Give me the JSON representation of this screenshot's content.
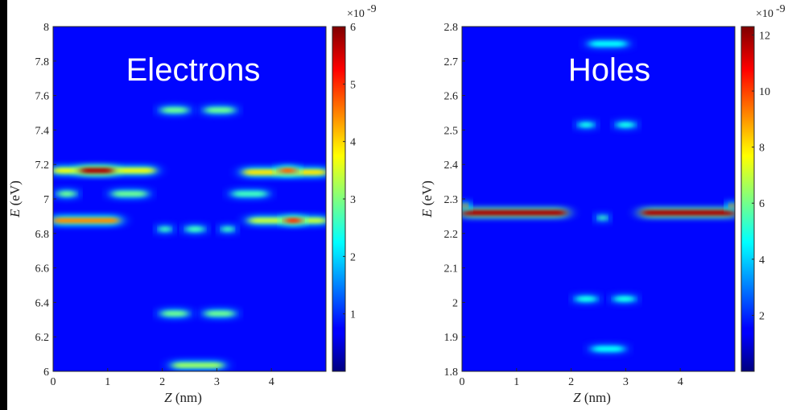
{
  "chart_data": [
    {
      "type": "heatmap",
      "title": "Electrons",
      "xlabel_var": "Z",
      "xlabel_unit": " (nm)",
      "ylabel_var": "E",
      "ylabel_unit": " (eV)",
      "xlim": [
        0,
        5
      ],
      "ylim": [
        6,
        8
      ],
      "x_ticks": [
        0,
        1,
        2,
        3,
        4
      ],
      "y_ticks": [
        6,
        6.2,
        6.4,
        6.6,
        6.8,
        7,
        7.2,
        7.4,
        7.6,
        7.8,
        8
      ],
      "x_tick_labels": [
        "0",
        "1",
        "2",
        "3",
        "4"
      ],
      "y_tick_labels": [
        "6",
        "6.2",
        "6.4",
        "6.6",
        "6.8",
        "7",
        "7.2",
        "7.4",
        "7.6",
        "7.8",
        "8"
      ],
      "colorbar": {
        "min": 0,
        "max": 6,
        "ticks": [
          1,
          2,
          3,
          4,
          5,
          6
        ],
        "tick_labels": [
          "1",
          "2",
          "3",
          "4",
          "5",
          "6"
        ],
        "multiplier": "×10",
        "exponent": "-9"
      },
      "features": [
        {
          "z": [
            0,
            1.85
          ],
          "e": 7.165,
          "intensity": 0.55
        },
        {
          "z": [
            0.5,
            1.1
          ],
          "e": 7.165,
          "intensity": 0.95
        },
        {
          "z": [
            0,
            1.2
          ],
          "e": 6.875,
          "intensity": 0.7
        },
        {
          "z": [
            0.1,
            0.4
          ],
          "e": 7.03,
          "intensity": 0.4
        },
        {
          "z": [
            1.1,
            1.7
          ],
          "e": 7.03,
          "intensity": 0.4
        },
        {
          "z": [
            3.3,
            3.9
          ],
          "e": 7.03,
          "intensity": 0.35
        },
        {
          "z": [
            3.5,
            5
          ],
          "e": 7.155,
          "intensity": 0.6
        },
        {
          "z": [
            4.15,
            4.45
          ],
          "e": 7.165,
          "intensity": 0.75
        },
        {
          "z": [
            3.6,
            5
          ],
          "e": 6.875,
          "intensity": 0.5
        },
        {
          "z": [
            4.25,
            4.55
          ],
          "e": 6.875,
          "intensity": 0.8
        },
        {
          "z": [
            2.0,
            2.45
          ],
          "e": 7.515,
          "intensity": 0.4
        },
        {
          "z": [
            2.8,
            3.3
          ],
          "e": 7.515,
          "intensity": 0.4
        },
        {
          "z": [
            1.95,
            2.15
          ],
          "e": 6.825,
          "intensity": 0.35
        },
        {
          "z": [
            2.45,
            2.75
          ],
          "e": 6.825,
          "intensity": 0.35
        },
        {
          "z": [
            3.1,
            3.3
          ],
          "e": 6.825,
          "intensity": 0.35
        },
        {
          "z": [
            2.0,
            2.45
          ],
          "e": 6.335,
          "intensity": 0.4
        },
        {
          "z": [
            2.8,
            3.3
          ],
          "e": 6.335,
          "intensity": 0.4
        },
        {
          "z": [
            2.2,
            3.1
          ],
          "e": 6.035,
          "intensity": 0.45
        }
      ]
    },
    {
      "type": "heatmap",
      "title": "Holes",
      "xlabel_var": "Z",
      "xlabel_unit": " (nm)",
      "ylabel_var": "E",
      "ylabel_unit": " (eV)",
      "xlim": [
        0,
        5
      ],
      "ylim": [
        1.8,
        2.8
      ],
      "x_ticks": [
        0,
        1,
        2,
        3,
        4
      ],
      "y_ticks": [
        1.8,
        1.9,
        2,
        2.1,
        2.2,
        2.3,
        2.4,
        2.5,
        2.6,
        2.7,
        2.8
      ],
      "x_tick_labels": [
        "0",
        "1",
        "2",
        "3",
        "4"
      ],
      "y_tick_labels": [
        "1.8",
        "1.9",
        "2",
        "2.1",
        "2.2",
        "2.3",
        "2.4",
        "2.5",
        "2.6",
        "2.7",
        "2.8"
      ],
      "colorbar": {
        "min": 0,
        "max": 12.3,
        "ticks": [
          2,
          4,
          6,
          8,
          10,
          12
        ],
        "tick_labels": [
          "2",
          "4",
          "6",
          "8",
          "10",
          "12"
        ],
        "multiplier": "×10",
        "exponent": "-9"
      },
      "features": [
        {
          "z": [
            0,
            1.9
          ],
          "e": 2.26,
          "intensity": 0.95
        },
        {
          "z": [
            3.3,
            5
          ],
          "e": 2.26,
          "intensity": 0.95
        },
        {
          "z": [
            0,
            0.1
          ],
          "e": 2.28,
          "intensity": 0.7
        },
        {
          "z": [
            4.9,
            5
          ],
          "e": 2.28,
          "intensity": 0.7
        },
        {
          "z": [
            2.5,
            2.65
          ],
          "e": 2.245,
          "intensity": 0.35
        },
        {
          "z": [
            2.15,
            2.4
          ],
          "e": 2.515,
          "intensity": 0.3
        },
        {
          "z": [
            2.85,
            3.15
          ],
          "e": 2.515,
          "intensity": 0.3
        },
        {
          "z": [
            2.1,
            2.45
          ],
          "e": 2.01,
          "intensity": 0.3
        },
        {
          "z": [
            2.8,
            3.15
          ],
          "e": 2.01,
          "intensity": 0.3
        },
        {
          "z": [
            2.35,
            3.0
          ],
          "e": 2.75,
          "intensity": 0.28
        },
        {
          "z": [
            2.4,
            2.95
          ],
          "e": 1.865,
          "intensity": 0.28
        }
      ]
    }
  ]
}
